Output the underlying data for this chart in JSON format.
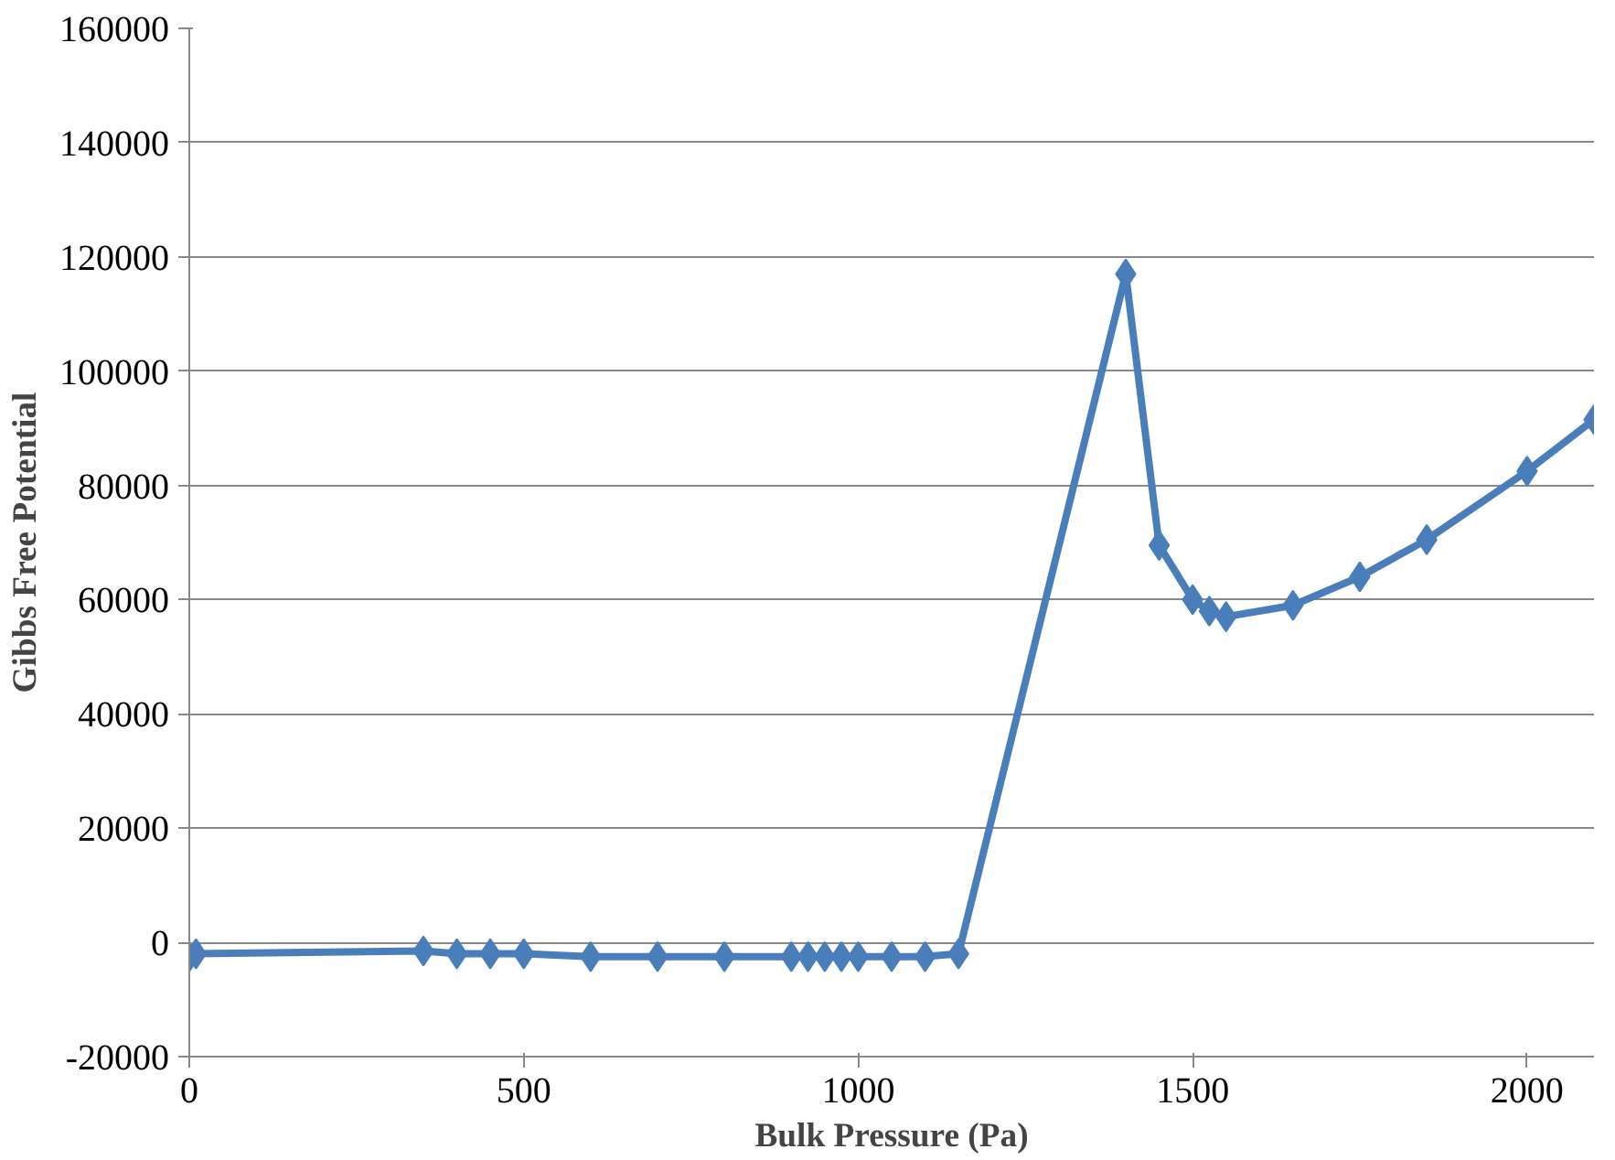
{
  "chart_data": {
    "type": "line",
    "xlabel": "Bulk Pressure (Pa)",
    "ylabel": "Gibbs Free Potential",
    "x": [
      0,
      10,
      350,
      400,
      450,
      500,
      600,
      700,
      800,
      900,
      925,
      950,
      975,
      1000,
      1050,
      1100,
      1150,
      1400,
      1450,
      1500,
      1525,
      1550,
      1650,
      1750,
      1850,
      2000,
      2100
    ],
    "series": [
      {
        "color": "#4a7ebb",
        "values": [
          -2500,
          -2000,
          -1500,
          -2000,
          -2000,
          -2000,
          -2500,
          -2500,
          -2500,
          -2500,
          -2500,
          -2500,
          -2500,
          -2500,
          -2500,
          -2500,
          -2000,
          117000,
          69500,
          60000,
          58000,
          57000,
          59000,
          64000,
          70500,
          82500,
          91500
        ]
      }
    ],
    "xlim": [
      0,
      2100
    ],
    "ylim": [
      -20000,
      160000
    ],
    "xticks": [
      0,
      500,
      1000,
      1500,
      2000
    ],
    "yticks": [
      -20000,
      0,
      20000,
      40000,
      60000,
      80000,
      100000,
      120000,
      140000,
      160000
    ],
    "grid": "y",
    "marker": "diamond",
    "line_style": "solid"
  }
}
